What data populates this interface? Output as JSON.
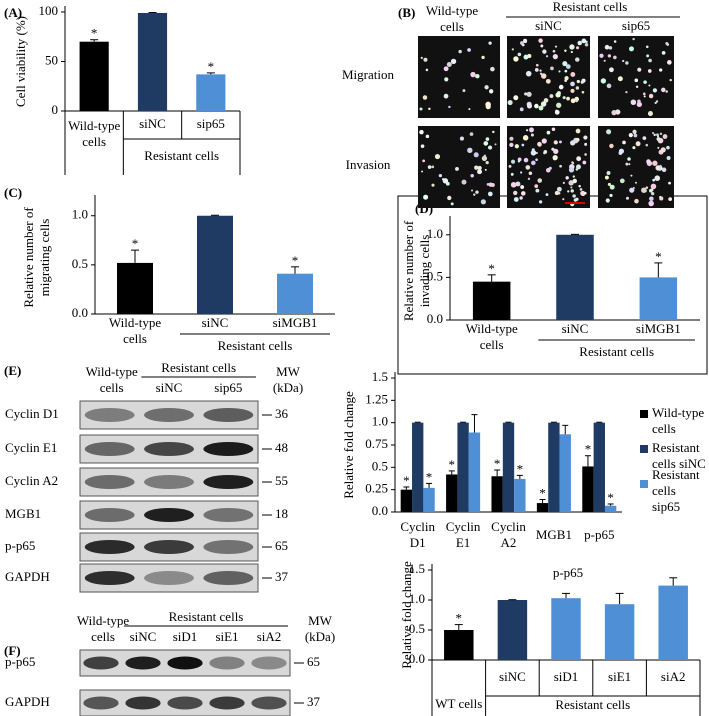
{
  "chart_data": [
    {
      "type": "bar",
      "panel": "(A)",
      "y_label": "Cell viability (%)",
      "categories": [
        "Wild-type cells",
        "siNC",
        "sip65"
      ],
      "group_label": "Resistant cells",
      "values": [
        70,
        99,
        37
      ],
      "errors": [
        2,
        0.5,
        1.5
      ],
      "significance": [
        "*",
        null,
        "*"
      ],
      "colors": [
        "#000000",
        "#1f3b63",
        "#4f8fd6"
      ],
      "ylim": [
        0,
        100
      ],
      "yticks": [
        0,
        50,
        100
      ]
    },
    {
      "type": "bar",
      "panel": "(C)",
      "y_label": "Relative number of migrating cells",
      "categories": [
        "Wild-type cells",
        "siNC",
        "siMGB1"
      ],
      "group_label": "Resistant cells",
      "values": [
        0.52,
        1.0,
        0.41
      ],
      "errors": [
        0.13,
        0.005,
        0.07
      ],
      "significance": [
        "*",
        null,
        "*"
      ],
      "colors": [
        "#000000",
        "#1f3b63",
        "#4f8fd6"
      ],
      "ylim": [
        0,
        1.15
      ],
      "yticks": [
        {
          "value": 0,
          "label": "0.0"
        },
        0.5,
        {
          "value": 1,
          "label": "1.0"
        }
      ]
    },
    {
      "type": "bar",
      "panel": "(D)",
      "y_label": "Relative number of invading cells",
      "categories": [
        "Wild-type cells",
        "siNC",
        "siMGB1"
      ],
      "group_label": "Resistant cells",
      "values": [
        0.45,
        1.0,
        0.5
      ],
      "errors": [
        0.08,
        0.005,
        0.17
      ],
      "significance": [
        "*",
        null,
        "*"
      ],
      "colors": [
        "#000000",
        "#1f3b63",
        "#4f8fd6"
      ],
      "ylim": [
        0,
        1.15
      ],
      "yticks": [
        {
          "value": 0,
          "label": "0.0"
        },
        0.5,
        {
          "value": 1,
          "label": "1.0"
        }
      ]
    },
    {
      "type": "grouped_bar",
      "y_label": "Relative fold change",
      "categories": [
        "Cyclin D1",
        "Cyclin E1",
        "Cyclin A2",
        "MGB1",
        "p-p65"
      ],
      "series": [
        {
          "name": "Wild-type cells",
          "color": "#000000",
          "values": [
            0.25,
            0.42,
            0.4,
            0.1,
            0.51
          ],
          "errors": [
            0.03,
            0.04,
            0.07,
            0.04,
            0.12
          ],
          "significance": [
            "*",
            "*",
            "*",
            "*",
            "*"
          ]
        },
        {
          "name": "Resistant cells siNC",
          "color": "#1f3b63",
          "values": [
            1,
            1,
            1,
            1,
            1
          ],
          "errors": [
            0.005,
            0.005,
            0.005,
            0.005,
            0.005
          ],
          "significance": [
            null,
            null,
            null,
            null,
            null
          ]
        },
        {
          "name": "Resistant cells sip65",
          "color": "#4f8fd6",
          "values": [
            0.27,
            0.89,
            0.37,
            0.87,
            0.07
          ],
          "errors": [
            0.05,
            0.2,
            0.04,
            0.1,
            0.02
          ],
          "significance": [
            "*",
            null,
            "*",
            null,
            "*"
          ]
        }
      ],
      "ylim": [
        0,
        1.5
      ],
      "yticks": [
        {
          "value": 0,
          "label": "0.0"
        },
        0.25,
        0.5,
        0.75,
        {
          "value": 1,
          "label": "1.0"
        },
        1.25,
        1.5
      ]
    },
    {
      "type": "bar",
      "title": "p-p65",
      "y_label": "Relative fold change",
      "categories": [
        "WT cells",
        "siNC",
        "siD1",
        "siE1",
        "siA2"
      ],
      "group_label": "Resistant cells",
      "values": [
        0.5,
        1.0,
        1.03,
        0.93,
        1.24
      ],
      "errors": [
        0.09,
        0.005,
        0.08,
        0.18,
        0.13
      ],
      "significance": [
        "*",
        null,
        null,
        null,
        null
      ],
      "colors": [
        "#000000",
        "#1f3b63",
        "#4f8fd6",
        "#4f8fd6",
        "#4f8fd6"
      ],
      "ylim": [
        0,
        1.5
      ],
      "yticks": [
        {
          "value": 0,
          "label": "0.0"
        },
        0.5,
        {
          "value": 1,
          "label": "1.0"
        },
        1.5
      ]
    }
  ],
  "panel_b": {
    "label": "(B)",
    "wild_type": "Wild-type cells",
    "resistant": "Resistant cells",
    "columns": [
      "siNC",
      "sip65"
    ],
    "rows": [
      "Migration",
      "Invasion"
    ]
  },
  "blot_e": {
    "label": "(E)",
    "wild_type": "Wild-type cells",
    "resistant": "Resistant cells",
    "lanes": [
      "siNC",
      "sip65"
    ],
    "mw_label": "MW (kDa)",
    "rows": [
      {
        "name": "Cyclin D1",
        "mw": 36
      },
      {
        "name": "Cyclin E1",
        "mw": 48
      },
      {
        "name": "Cyclin A2",
        "mw": 55
      },
      {
        "name": "MGB1",
        "mw": 18
      },
      {
        "name": "p-p65",
        "mw": 65
      },
      {
        "name": "GAPDH",
        "mw": 37
      }
    ]
  },
  "blot_f": {
    "label": "(F)",
    "wild_type": "Wild-type cells",
    "resistant": "Resistant cells",
    "lanes": [
      "siNC",
      "siD1",
      "siE1",
      "siA2"
    ],
    "mw_label": "MW (kDa)",
    "rows": [
      {
        "name": "p-p65",
        "mw": 65
      },
      {
        "name": "GAPDH",
        "mw": 37
      }
    ]
  }
}
